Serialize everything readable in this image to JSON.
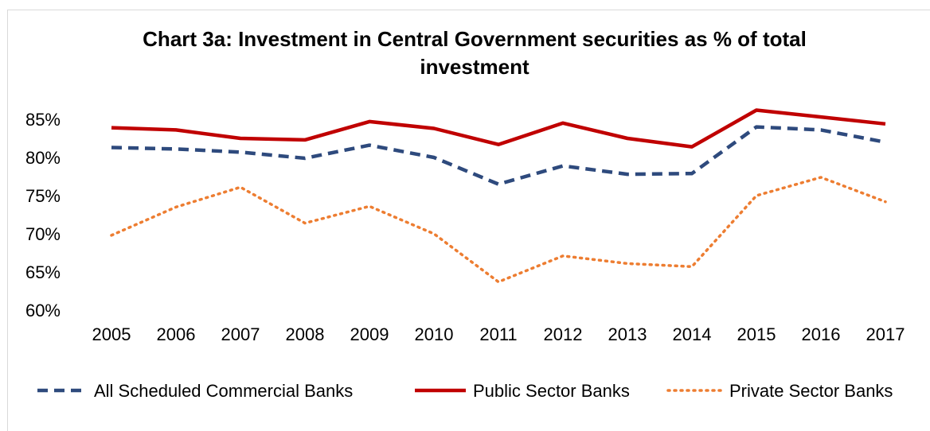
{
  "chart_data": {
    "type": "line",
    "title_line1": "Chart 3a: Investment in Central Government securities as % of total",
    "title_line2": "investment",
    "categories": [
      "2005",
      "2006",
      "2007",
      "2008",
      "2009",
      "2010",
      "2011",
      "2012",
      "2013",
      "2014",
      "2015",
      "2016",
      "2017"
    ],
    "y_ticks": [
      "85%",
      "80%",
      "75%",
      "70%",
      "65%",
      "60%"
    ],
    "ylim": [
      60,
      85
    ],
    "grid": false,
    "legend_position": "bottom",
    "series": [
      {
        "name": "All Scheduled Commercial Banks",
        "style": "dashed",
        "color": "#2e4a7d",
        "values": [
          81.3,
          81.1,
          80.7,
          79.9,
          81.6,
          80.0,
          76.5,
          78.9,
          77.8,
          77.9,
          84.0,
          83.6,
          82.0
        ]
      },
      {
        "name": "Public Sector Banks",
        "style": "solid",
        "color": "#c00000",
        "values": [
          83.9,
          83.6,
          82.5,
          82.3,
          84.7,
          83.8,
          81.7,
          84.5,
          82.5,
          81.4,
          86.2,
          85.3,
          84.4
        ]
      },
      {
        "name": "Private Sector Banks",
        "style": "dotted",
        "color": "#ed7d31",
        "values": [
          69.8,
          73.5,
          76.1,
          71.4,
          73.6,
          70.0,
          63.7,
          67.1,
          66.1,
          65.7,
          75.0,
          77.4,
          74.2
        ]
      }
    ]
  }
}
